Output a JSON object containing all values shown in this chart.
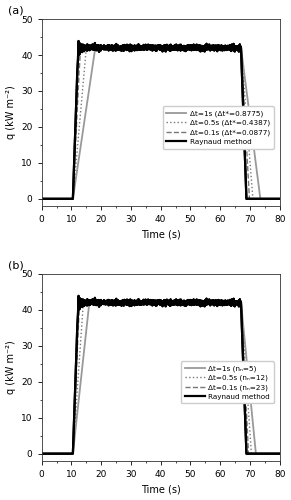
{
  "title_a": "(a)",
  "title_b": "(b)",
  "xlabel": "Time (s)",
  "ylabel": "q (kW m⁻²)",
  "xlim": [
    0,
    80
  ],
  "ylim": [
    -2,
    50
  ],
  "yticks": [
    0,
    10,
    20,
    30,
    40,
    50
  ],
  "xticks": [
    0,
    10,
    20,
    30,
    40,
    50,
    60,
    70,
    80
  ],
  "legend_a": [
    {
      "label": "Raynaud method",
      "color": "#000000",
      "lw": 1.6,
      "ls": "solid"
    },
    {
      "label": "Δt=0.1s (Δt*=0.0877)",
      "color": "#777777",
      "lw": 1.0,
      "ls": "dashed"
    },
    {
      "label": "Δt=0.5s (Δt*=0.4387)",
      "color": "#777777",
      "lw": 1.0,
      "ls": "dotted"
    },
    {
      "label": "Δt=1s (Δt*=0.8775)",
      "color": "#999999",
      "lw": 1.3,
      "ls": "solid"
    }
  ],
  "legend_b": [
    {
      "label": "Raynaud method",
      "color": "#000000",
      "lw": 1.6,
      "ls": "solid"
    },
    {
      "label": "Δt=0.1s (nₙ=23)",
      "color": "#777777",
      "lw": 1.0,
      "ls": "dashed"
    },
    {
      "label": "Δt=0.5s (nₙ=12)",
      "color": "#777777",
      "lw": 1.0,
      "ls": "dotted"
    },
    {
      "label": "Δt=1s (nₙ=5)",
      "color": "#999999",
      "lw": 1.3,
      "ls": "solid"
    }
  ],
  "background_color": "#ffffff"
}
